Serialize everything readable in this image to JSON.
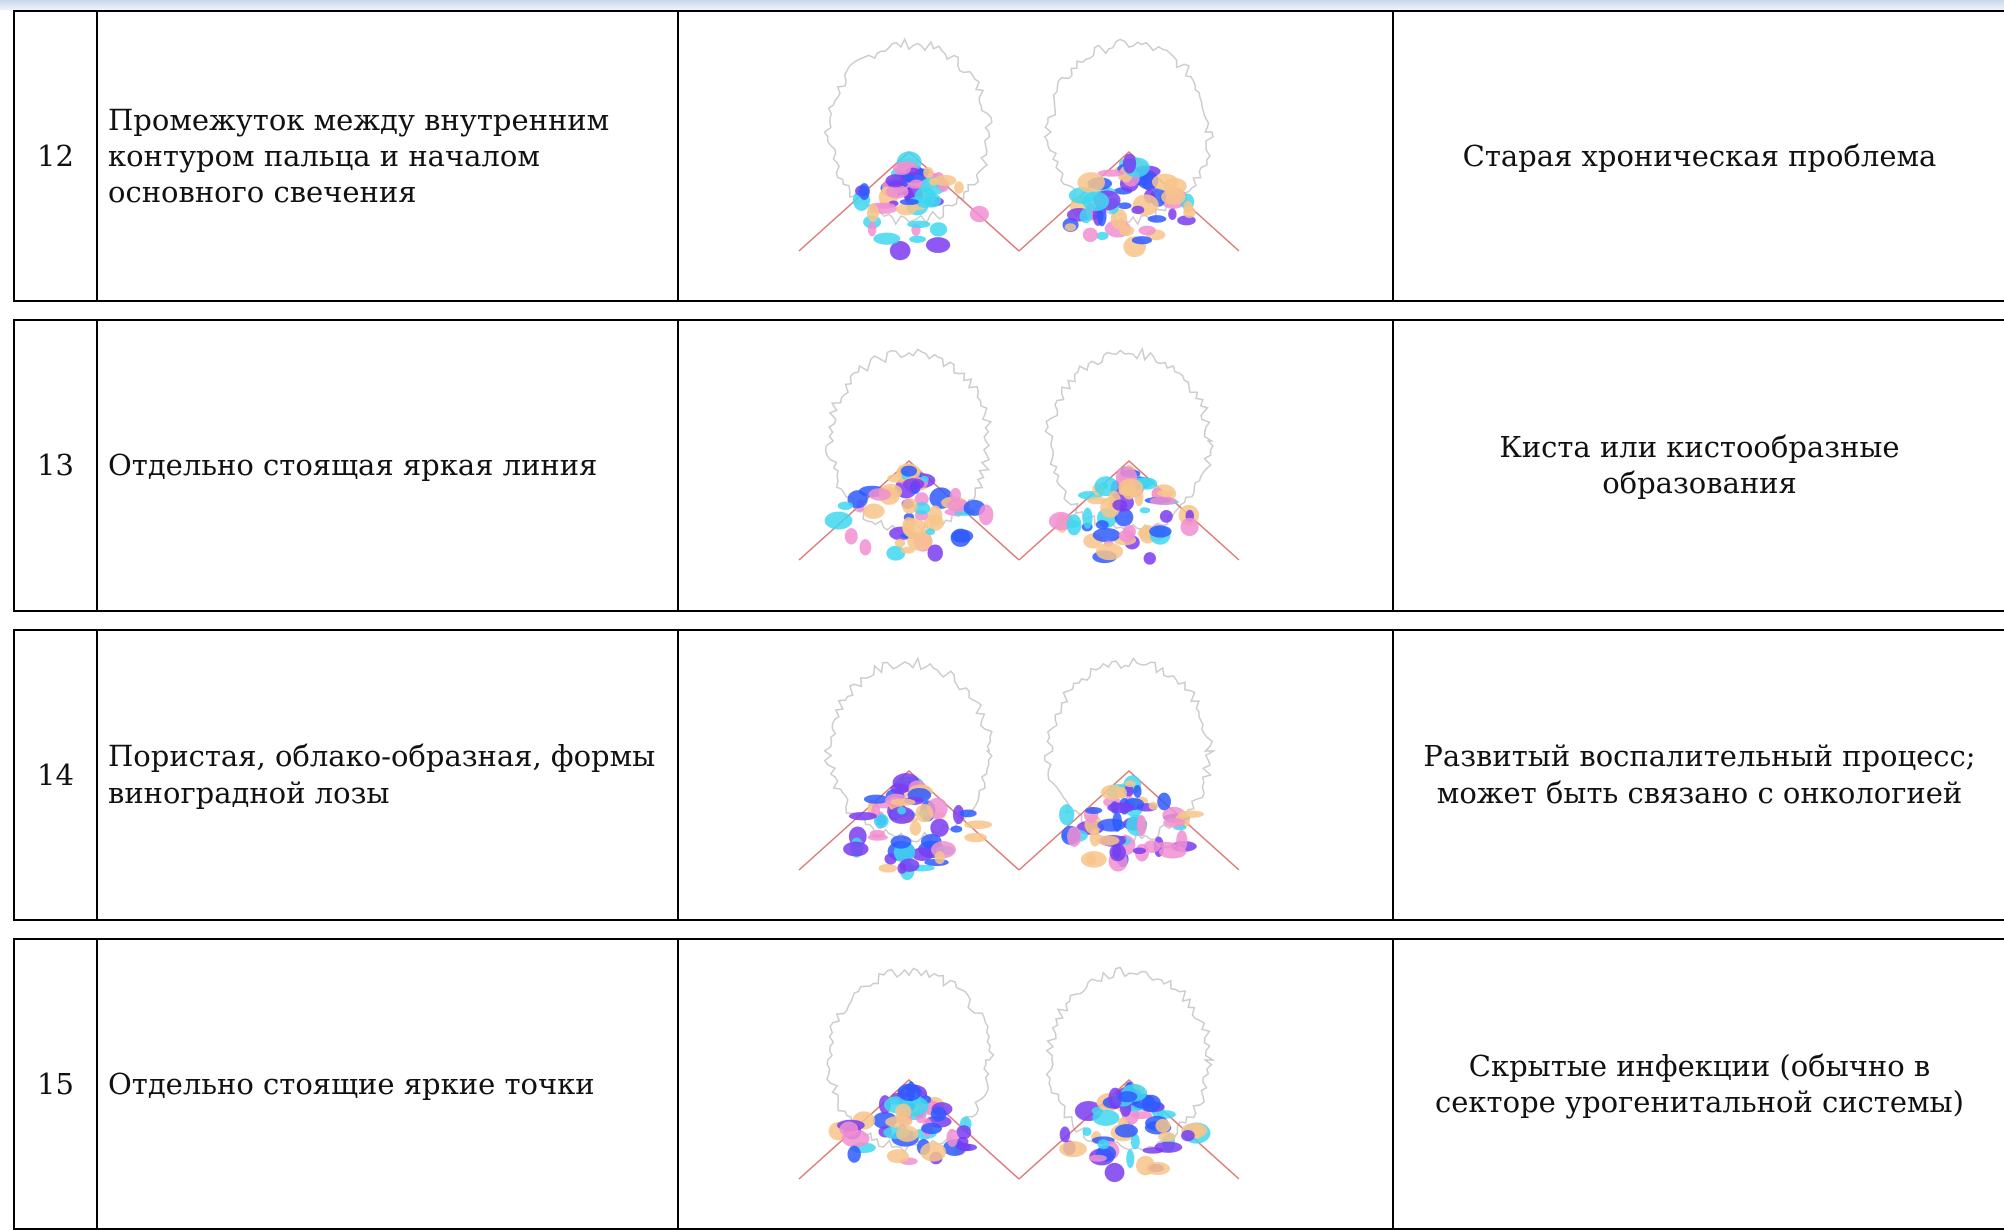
{
  "table": {
    "rows": [
      [
        "12",
        "Промежуток между внутренним контуром пальца и началом основного свечения",
        "Старая хроническая проблема"
      ],
      [
        "13",
        "Отдельно стоящая яркая линия",
        "Киста или кистообразные образования"
      ],
      [
        "14",
        "Пористая, облако-образная, формы виноградной лозы",
        "Развитый воспалительный процесс; может быть связано с онкологией"
      ],
      [
        "15",
        "Отдельно стоящие яркие точки",
        "Скрытые инфекции (обычно в секторе урогенитальной системы)"
      ]
    ]
  }
}
